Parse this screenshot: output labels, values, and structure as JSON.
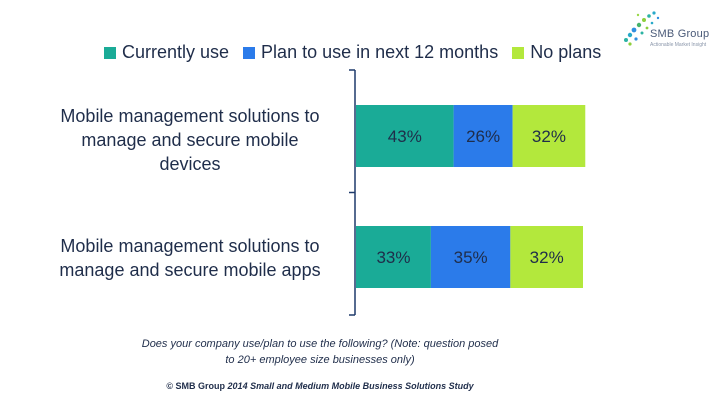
{
  "logo": {
    "text": "SMB Group",
    "tagline": "Actionable Market Insight"
  },
  "chart_data": {
    "type": "bar",
    "orientation": "horizontal",
    "stacked": true,
    "categories": [
      "Mobile management solutions to manage and secure mobile devices",
      "Mobile management solutions to manage and secure mobile apps"
    ],
    "series": [
      {
        "name": "Currently use",
        "values": [
          43,
          33
        ],
        "labels": [
          "43%",
          "33%"
        ],
        "color": "#1aab97"
      },
      {
        "name": "Plan to use in next 12 months",
        "values": [
          26,
          35
        ],
        "labels": [
          "26%",
          "35%"
        ],
        "color": "#2b7bea"
      },
      {
        "name": "No plans",
        "values": [
          32,
          32
        ],
        "labels": [
          "32%",
          "32%"
        ],
        "color": "#b3e83c"
      }
    ],
    "legend_position": "top",
    "grid": false
  },
  "category_lines": [
    [
      "Mobile management solutions to",
      "manage and secure mobile",
      "devices"
    ],
    [
      "Mobile management solutions to",
      "manage and secure mobile apps"
    ]
  ],
  "footnote": {
    "line1": "Does your company use/plan to use the following? (Note: question posed",
    "line2": "to 20+ employee size businesses only)"
  },
  "copyright": {
    "prefix": "© SMB Group",
    "title": "2014 Small and Medium Mobile Business Solutions Study"
  }
}
